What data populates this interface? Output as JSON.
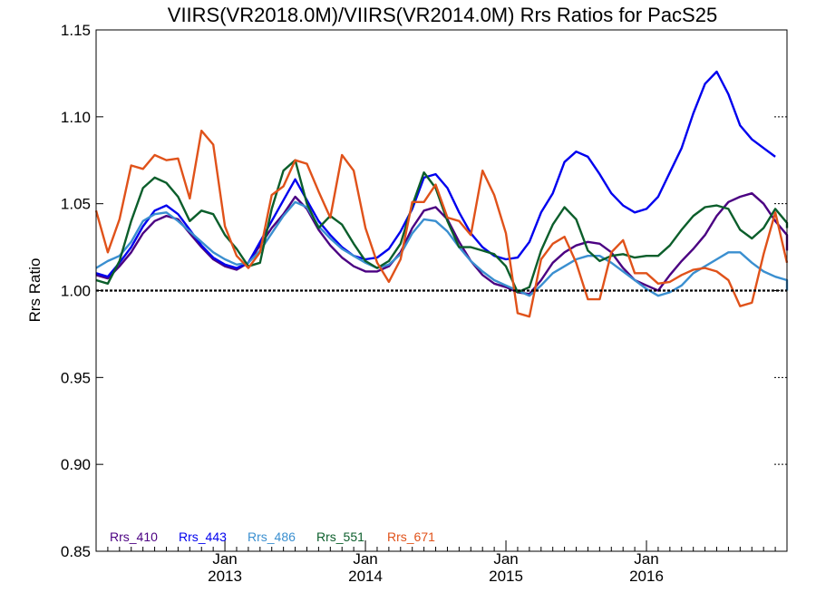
{
  "chart_data": {
    "type": "line",
    "title": "VIIRS(VR2018.0M)/VIIRS(VR2014.0M)  Rrs Ratios for PacS25",
    "xlabel": "",
    "ylabel": "Rrs Ratio",
    "ylim": [
      0.85,
      1.15
    ],
    "y_ticks": [
      "0.85",
      "0.90",
      "0.95",
      "1.00",
      "1.05",
      "1.10",
      "1.15"
    ],
    "x_ticks": [
      {
        "month": "Jan",
        "year": "2013"
      },
      {
        "month": "Jan",
        "year": "2014"
      },
      {
        "month": "Jan",
        "year": "2015"
      },
      {
        "month": "Jan",
        "year": "2016"
      }
    ],
    "reference_line": 1.0,
    "x_start": "2012-02",
    "x_end": "2017-01",
    "series": [
      {
        "name": "Rrs_410",
        "color": "#4b0082",
        "values": [
          1.009,
          1.007,
          1.014,
          1.022,
          1.033,
          1.04,
          1.043,
          1.041,
          1.033,
          1.025,
          1.018,
          1.014,
          1.012,
          1.016,
          1.026,
          1.036,
          1.044,
          1.054,
          1.047,
          1.035,
          1.026,
          1.019,
          1.014,
          1.011,
          1.011,
          1.014,
          1.022,
          1.036,
          1.046,
          1.048,
          1.041,
          1.028,
          1.017,
          1.009,
          1.004,
          1.002,
          0.999,
          0.998,
          1.006,
          1.016,
          1.022,
          1.026,
          1.028,
          1.027,
          1.022,
          1.013,
          1.006,
          1.003,
          1.0,
          1.009,
          1.017,
          1.024,
          1.032,
          1.043,
          1.051,
          1.054,
          1.056,
          1.05,
          1.04,
          1.032,
          1.027,
          1.023
        ]
      },
      {
        "name": "Rrs_443",
        "color": "#0000ee",
        "values": [
          1.01,
          1.008,
          1.016,
          1.025,
          1.037,
          1.046,
          1.049,
          1.044,
          1.035,
          1.026,
          1.019,
          1.015,
          1.013,
          1.016,
          1.028,
          1.04,
          1.052,
          1.064,
          1.052,
          1.04,
          1.032,
          1.025,
          1.02,
          1.018,
          1.019,
          1.024,
          1.034,
          1.047,
          1.065,
          1.067,
          1.059,
          1.045,
          1.033,
          1.025,
          1.02,
          1.018,
          1.019,
          1.028,
          1.045,
          1.056,
          1.074,
          1.08,
          1.077,
          1.067,
          1.056,
          1.049,
          1.045,
          1.047,
          1.054,
          1.068,
          1.082,
          1.102,
          1.119,
          1.126,
          1.113,
          1.095,
          1.087,
          1.082,
          1.077
        ]
      },
      {
        "name": "Rrs_486",
        "color": "#3a8fd0",
        "values": [
          1.013,
          1.017,
          1.02,
          1.028,
          1.04,
          1.044,
          1.045,
          1.04,
          1.034,
          1.028,
          1.022,
          1.018,
          1.015,
          1.016,
          1.023,
          1.033,
          1.043,
          1.051,
          1.048,
          1.037,
          1.03,
          1.024,
          1.02,
          1.016,
          1.013,
          1.015,
          1.021,
          1.033,
          1.041,
          1.04,
          1.034,
          1.025,
          1.017,
          1.011,
          1.006,
          1.003,
          1.0,
          0.997,
          1.003,
          1.01,
          1.014,
          1.018,
          1.02,
          1.02,
          1.016,
          1.011,
          1.006,
          1.001,
          0.997,
          0.999,
          1.003,
          1.01,
          1.014,
          1.018,
          1.022,
          1.022,
          1.016,
          1.011,
          1.008,
          1.006,
          1.0
        ]
      },
      {
        "name": "Rrs_551",
        "color": "#0b5e2b",
        "values": [
          1.006,
          1.004,
          1.017,
          1.04,
          1.059,
          1.065,
          1.062,
          1.054,
          1.04,
          1.046,
          1.044,
          1.032,
          1.024,
          1.014,
          1.016,
          1.047,
          1.069,
          1.075,
          1.05,
          1.036,
          1.043,
          1.038,
          1.027,
          1.017,
          1.013,
          1.017,
          1.027,
          1.049,
          1.068,
          1.059,
          1.04,
          1.025,
          1.025,
          1.023,
          1.021,
          1.014,
          0.999,
          1.002,
          1.023,
          1.038,
          1.048,
          1.041,
          1.023,
          1.017,
          1.02,
          1.021,
          1.019,
          1.02,
          1.02,
          1.026,
          1.035,
          1.043,
          1.048,
          1.049,
          1.047,
          1.035,
          1.03,
          1.036,
          1.047,
          1.039,
          1.036
        ]
      },
      {
        "name": "Rrs_671",
        "color": "#e0521a",
        "values": [
          1.046,
          1.022,
          1.041,
          1.072,
          1.07,
          1.078,
          1.075,
          1.076,
          1.053,
          1.092,
          1.084,
          1.037,
          1.02,
          1.013,
          1.022,
          1.055,
          1.06,
          1.075,
          1.073,
          1.057,
          1.042,
          1.078,
          1.069,
          1.036,
          1.016,
          1.005,
          1.018,
          1.051,
          1.051,
          1.061,
          1.042,
          1.04,
          1.032,
          1.069,
          1.055,
          1.033,
          0.987,
          0.985,
          1.018,
          1.027,
          1.031,
          1.016,
          0.995,
          0.995,
          1.022,
          1.029,
          1.01,
          1.01,
          1.004,
          1.005,
          1.009,
          1.012,
          1.013,
          1.011,
          1.006,
          0.991,
          0.993,
          1.021,
          1.045,
          1.016
        ]
      }
    ],
    "legend_position": "bottom-left",
    "grid": false
  }
}
